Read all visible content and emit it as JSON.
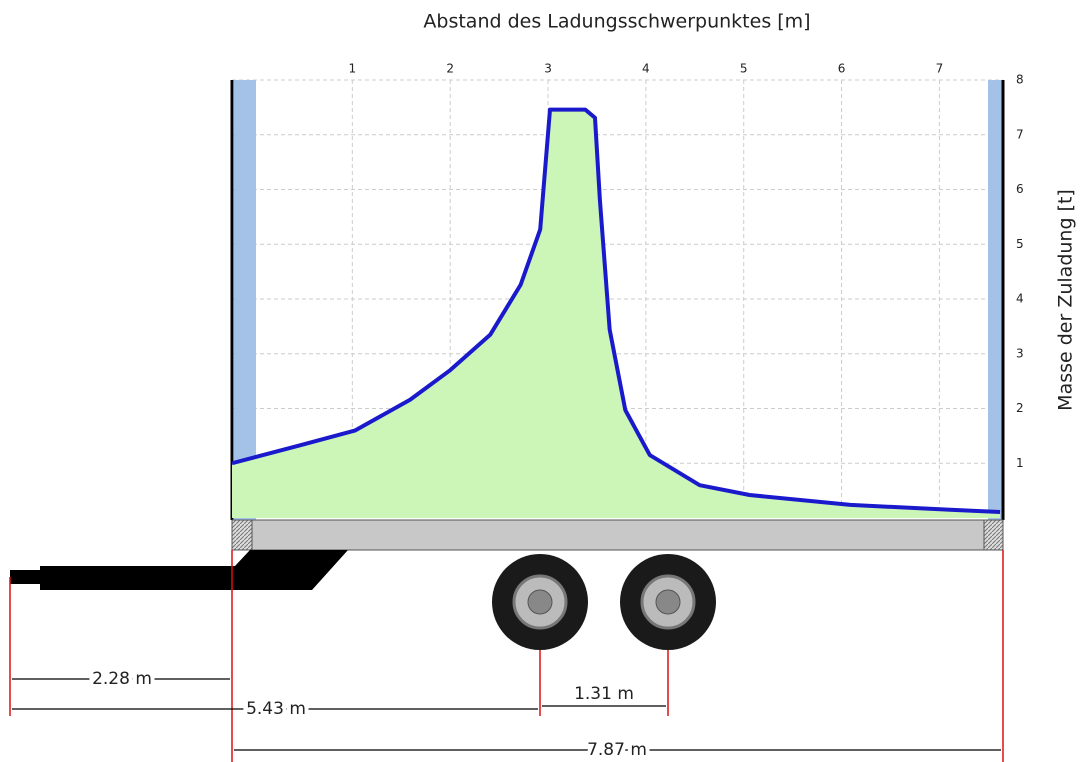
{
  "chart_data": {
    "type": "area",
    "title": "Abstand des Ladungsschwerpunktes [m]",
    "y_label": "Masse der Zuladung [t]",
    "x": [
      -0.23,
      0.47,
      1.03,
      1.59,
      2.0,
      2.41,
      2.72,
      2.92,
      3.02,
      3.38,
      3.48,
      3.53,
      3.63,
      3.79,
      4.04,
      4.55,
      5.06,
      6.09,
      7.11,
      7.62
    ],
    "series": [
      {
        "color": "#1a1acc",
        "fill": "#ccf5b8",
        "values": [
          1.0,
          1.33,
          1.6,
          2.16,
          2.7,
          3.35,
          4.26,
          5.27,
          7.46,
          7.46,
          7.31,
          5.81,
          3.44,
          1.97,
          1.15,
          0.6,
          0.42,
          0.24,
          0.15,
          0.11
        ]
      }
    ],
    "xlim": [
      -0.23,
      7.65
    ],
    "xticks": [
      1,
      2,
      3,
      4,
      5,
      6,
      7
    ],
    "ylim": [
      0,
      8
    ],
    "yticks": [
      1,
      2,
      3,
      4,
      5,
      6,
      7,
      8
    ],
    "grid": true
  },
  "trailer": {
    "dimensions": [
      "2.28 m",
      "5.43 m",
      "1.31 m",
      "7.87 m"
    ]
  }
}
